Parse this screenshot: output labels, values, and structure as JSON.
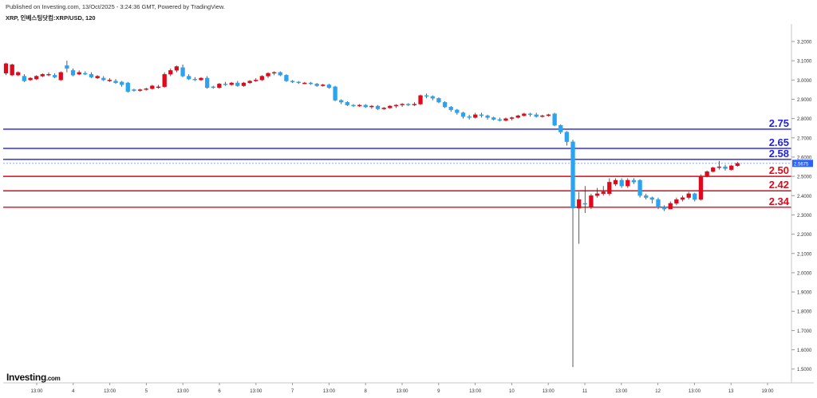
{
  "header": {
    "published": "Published on Investing.com, 13/Oct/2025 - 3:24:36 GMT, Powered by TradingView.",
    "symbol": "XRP, 인베스팅닷컴:XRP/USD, 120"
  },
  "logo": {
    "brand": "Investing",
    "domain": ".com"
  },
  "colors": {
    "up": "#e0081b",
    "down": "#2aa3f0",
    "blue_line": "#1f1ff0",
    "red_line": "#e0081b",
    "price_badge": "#2962ff"
  },
  "chart_data": {
    "type": "candlestick",
    "y_ticks": [
      "3.2000",
      "3.1000",
      "3.0000",
      "2.9000",
      "2.8000",
      "2.7000",
      "2.6000",
      "2.5000",
      "2.4000",
      "2.3000",
      "2.2000",
      "2.1000",
      "2.0000",
      "1.9000",
      "1.8000",
      "1.7000",
      "1.6000",
      "1.5000"
    ],
    "x_ticks": [
      "13:00",
      "4",
      "13:00",
      "5",
      "13:00",
      "6",
      "13:00",
      "7",
      "13:00",
      "8",
      "13:00",
      "9",
      "13:00",
      "10",
      "13:00",
      "11",
      "13:00",
      "12",
      "13:00",
      "13",
      "19:00"
    ],
    "current_price": "2.5675",
    "levels": [
      {
        "label": "2.75",
        "value": 2.745,
        "color": "blue"
      },
      {
        "label": "2.65",
        "value": 2.645,
        "color": "blue"
      },
      {
        "label": "2.58",
        "value": 2.588,
        "color": "blue"
      },
      {
        "label": "2.50",
        "value": 2.5,
        "color": "red"
      },
      {
        "label": "2.42",
        "value": 2.425,
        "color": "red"
      },
      {
        "label": "2.34",
        "value": 2.34,
        "color": "red"
      }
    ],
    "candles": [
      [
        3.035,
        3.085,
        3.09,
        3.025
      ],
      [
        3.025,
        3.08,
        3.085,
        3.02
      ],
      [
        3.025,
        3.04,
        3.045,
        3.02
      ],
      [
        3.02,
        2.995,
        3.03,
        2.99
      ],
      [
        3.0,
        3.01,
        3.015,
        2.995
      ],
      [
        3.005,
        3.02,
        3.025,
        3.0
      ],
      [
        3.02,
        3.03,
        3.035,
        3.015
      ],
      [
        3.03,
        3.03,
        3.04,
        3.02
      ],
      [
        3.025,
        3.015,
        3.035,
        3.01
      ],
      [
        3.0,
        3.04,
        3.045,
        2.995
      ],
      [
        3.075,
        3.06,
        3.1,
        3.04
      ],
      [
        3.05,
        3.025,
        3.06,
        3.02
      ],
      [
        3.03,
        3.04,
        3.05,
        3.025
      ],
      [
        3.035,
        3.03,
        3.045,
        3.025
      ],
      [
        3.03,
        3.015,
        3.04,
        3.01
      ],
      [
        3.01,
        3.02,
        3.025,
        3.005
      ],
      [
        3.01,
        3.0,
        3.02,
        2.995
      ],
      [
        3.0,
        3.0,
        3.01,
        2.99
      ],
      [
        2.995,
        2.985,
        3.005,
        2.98
      ],
      [
        2.99,
        2.975,
        2.995,
        2.965
      ],
      [
        2.985,
        2.94,
        2.99,
        2.935
      ],
      [
        2.95,
        2.945,
        2.955,
        2.94
      ],
      [
        2.945,
        2.95,
        2.955,
        2.94
      ],
      [
        2.95,
        2.955,
        2.96,
        2.945
      ],
      [
        2.955,
        2.97,
        2.975,
        2.95
      ],
      [
        2.965,
        2.965,
        2.975,
        2.955
      ],
      [
        2.965,
        3.03,
        3.04,
        2.96
      ],
      [
        3.03,
        3.05,
        3.06,
        3.02
      ],
      [
        3.05,
        3.07,
        3.075,
        3.04
      ],
      [
        3.065,
        3.02,
        3.08,
        3.015
      ],
      [
        3.02,
        3.005,
        3.03,
        3.0
      ],
      [
        3.005,
        3.0,
        3.015,
        2.995
      ],
      [
        3.0,
        3.01,
        3.015,
        2.995
      ],
      [
        3.01,
        2.96,
        3.02,
        2.955
      ],
      [
        2.965,
        2.96,
        2.97,
        2.955
      ],
      [
        2.96,
        2.98,
        2.985,
        2.955
      ],
      [
        2.98,
        2.975,
        2.99,
        2.97
      ],
      [
        2.975,
        2.985,
        2.99,
        2.97
      ],
      [
        2.985,
        2.97,
        2.995,
        2.965
      ],
      [
        2.97,
        2.985,
        2.99,
        2.965
      ],
      [
        2.985,
        2.995,
        3.0,
        2.98
      ],
      [
        2.995,
        3.0,
        3.01,
        2.99
      ],
      [
        3.0,
        3.02,
        3.025,
        2.995
      ],
      [
        3.02,
        3.035,
        3.04,
        3.01
      ],
      [
        3.035,
        3.04,
        3.045,
        3.025
      ],
      [
        3.04,
        3.025,
        3.045,
        3.02
      ],
      [
        3.025,
        2.995,
        3.03,
        2.99
      ],
      [
        2.995,
        2.99,
        3.0,
        2.985
      ],
      [
        2.99,
        2.985,
        2.995,
        2.98
      ],
      [
        2.985,
        2.985,
        2.99,
        2.98
      ],
      [
        2.985,
        2.98,
        2.99,
        2.975
      ],
      [
        2.98,
        2.97,
        2.985,
        2.965
      ],
      [
        2.97,
        2.975,
        2.98,
        2.965
      ],
      [
        2.975,
        2.96,
        2.98,
        2.955
      ],
      [
        2.965,
        2.895,
        2.97,
        2.89
      ],
      [
        2.895,
        2.885,
        2.9,
        2.875
      ],
      [
        2.885,
        2.87,
        2.89,
        2.865
      ],
      [
        2.87,
        2.865,
        2.875,
        2.86
      ],
      [
        2.865,
        2.87,
        2.875,
        2.86
      ],
      [
        2.87,
        2.86,
        2.875,
        2.855
      ],
      [
        2.86,
        2.865,
        2.87,
        2.85
      ],
      [
        2.865,
        2.85,
        2.87,
        2.845
      ],
      [
        2.85,
        2.855,
        2.86,
        2.845
      ],
      [
        2.855,
        2.865,
        2.87,
        2.85
      ],
      [
        2.865,
        2.87,
        2.875,
        2.855
      ],
      [
        2.87,
        2.875,
        2.88,
        2.86
      ],
      [
        2.875,
        2.87,
        2.88,
        2.865
      ],
      [
        2.87,
        2.875,
        2.885,
        2.865
      ],
      [
        2.875,
        2.92,
        2.925,
        2.87
      ],
      [
        2.92,
        2.915,
        2.93,
        2.905
      ],
      [
        2.915,
        2.905,
        2.92,
        2.895
      ],
      [
        2.905,
        2.885,
        2.91,
        2.88
      ],
      [
        2.885,
        2.86,
        2.89,
        2.855
      ],
      [
        2.86,
        2.845,
        2.865,
        2.835
      ],
      [
        2.845,
        2.83,
        2.85,
        2.82
      ],
      [
        2.83,
        2.81,
        2.835,
        2.8
      ],
      [
        2.81,
        2.805,
        2.82,
        2.795
      ],
      [
        2.805,
        2.82,
        2.83,
        2.8
      ],
      [
        2.82,
        2.815,
        2.83,
        2.805
      ],
      [
        2.815,
        2.805,
        2.82,
        2.795
      ],
      [
        2.805,
        2.795,
        2.81,
        2.79
      ],
      [
        2.795,
        2.79,
        2.805,
        2.785
      ],
      [
        2.79,
        2.8,
        2.805,
        2.785
      ],
      [
        2.8,
        2.805,
        2.81,
        2.79
      ],
      [
        2.805,
        2.815,
        2.82,
        2.8
      ],
      [
        2.815,
        2.825,
        2.83,
        2.81
      ],
      [
        2.825,
        2.82,
        2.83,
        2.81
      ],
      [
        2.82,
        2.81,
        2.83,
        2.805
      ],
      [
        2.81,
        2.815,
        2.82,
        2.805
      ],
      [
        2.815,
        2.82,
        2.825,
        2.81
      ],
      [
        2.825,
        2.765,
        2.83,
        2.76
      ],
      [
        2.765,
        2.73,
        2.77,
        2.72
      ],
      [
        2.73,
        2.68,
        2.735,
        2.66
      ],
      [
        2.68,
        2.335,
        2.69,
        1.51
      ],
      [
        2.335,
        2.38,
        2.42,
        2.15
      ],
      [
        2.36,
        2.355,
        2.45,
        2.31
      ],
      [
        2.34,
        2.4,
        2.41,
        2.33
      ],
      [
        2.4,
        2.41,
        2.44,
        2.39
      ],
      [
        2.41,
        2.42,
        2.45,
        2.4
      ],
      [
        2.41,
        2.47,
        2.49,
        2.4
      ],
      [
        2.46,
        2.48,
        2.49,
        2.45
      ],
      [
        2.48,
        2.45,
        2.49,
        2.44
      ],
      [
        2.45,
        2.48,
        2.49,
        2.44
      ],
      [
        2.48,
        2.47,
        2.49,
        2.46
      ],
      [
        2.48,
        2.4,
        2.485,
        2.39
      ],
      [
        2.4,
        2.39,
        2.41,
        2.38
      ],
      [
        2.39,
        2.38,
        2.395,
        2.36
      ],
      [
        2.38,
        2.34,
        2.39,
        2.33
      ],
      [
        2.34,
        2.33,
        2.35,
        2.32
      ],
      [
        2.33,
        2.36,
        2.37,
        2.33
      ],
      [
        2.36,
        2.38,
        2.39,
        2.35
      ],
      [
        2.38,
        2.39,
        2.4,
        2.37
      ],
      [
        2.39,
        2.41,
        2.42,
        2.38
      ],
      [
        2.41,
        2.38,
        2.415,
        2.37
      ],
      [
        2.38,
        2.5,
        2.51,
        2.375
      ],
      [
        2.5,
        2.525,
        2.53,
        2.495
      ],
      [
        2.525,
        2.545,
        2.55,
        2.52
      ],
      [
        2.545,
        2.55,
        2.58,
        2.535
      ],
      [
        2.55,
        2.54,
        2.56,
        2.53
      ],
      [
        2.535,
        2.555,
        2.56,
        2.53
      ],
      [
        2.555,
        2.5675,
        2.575,
        2.55
      ]
    ]
  }
}
